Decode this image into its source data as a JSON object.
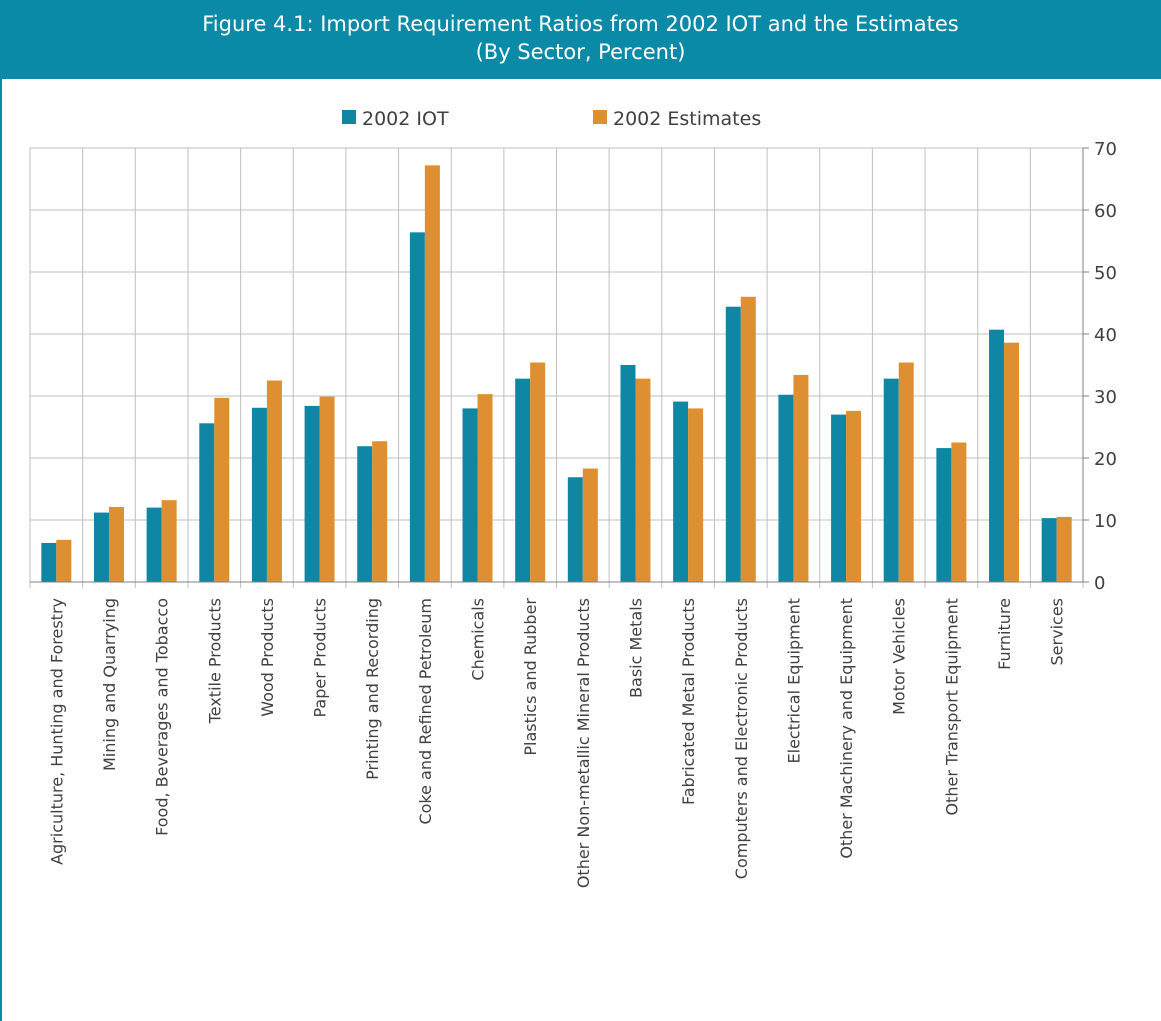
{
  "header": {
    "title_line1": "Figure 4.1: Import Requirement Ratios from 2002 IOT and the Estimates",
    "title_line2": "(By Sector, Percent)"
  },
  "colors": {
    "header_bg": "#0b8aa8",
    "series_iot": "#0f87a4",
    "series_est": "#de8f31",
    "grid": "#bfbfbf"
  },
  "chart_data": {
    "type": "bar",
    "title": "Figure 4.1: Import Requirement Ratios from 2002 IOT and the Estimates (By Sector, Percent)",
    "categories": [
      "Agriculture, Hunting and Forestry",
      "Mining and Quarrying",
      "Food, Beverages and Tobacco",
      "Textile Products",
      "Wood Products",
      "Paper Products",
      "Printing and Recording",
      "Coke and Refined Petroleum",
      "Chemicals",
      "Plastics and Rubber",
      "Other Non-metallic Mineral Products",
      "Basic Metals",
      "Fabricated Metal Products",
      "Computers and Electronic Products",
      "Electrical Equipment",
      "Other Machinery and Equipment",
      "Motor Vehicles",
      "Other Transport Equipment",
      "Furniture",
      "Services"
    ],
    "series": [
      {
        "name": "2002 IOT",
        "values": [
          6.3,
          11.2,
          12.0,
          25.6,
          28.1,
          28.4,
          21.9,
          56.4,
          28.0,
          32.8,
          16.9,
          35.0,
          29.1,
          44.4,
          30.2,
          27.0,
          32.8,
          21.6,
          40.7,
          10.3
        ]
      },
      {
        "name": "2002 Estimates",
        "values": [
          6.8,
          12.1,
          13.2,
          29.7,
          32.5,
          29.9,
          22.7,
          67.2,
          30.3,
          35.4,
          18.3,
          32.8,
          28.0,
          46.0,
          33.4,
          27.6,
          35.4,
          22.5,
          38.6,
          10.5
        ]
      }
    ],
    "ylim": [
      0,
      70
    ],
    "yticks": [
      "0",
      "10",
      "20",
      "30",
      "40",
      "50",
      "60",
      "70"
    ],
    "y_axis_side": "right",
    "grid": "vertical lines between categories, horizontal at major ticks",
    "legend_position": "top-center"
  }
}
